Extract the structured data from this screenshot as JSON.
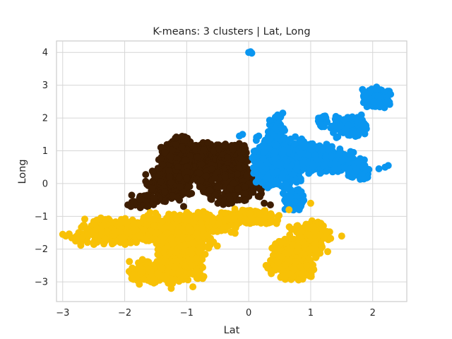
{
  "chart_data": {
    "type": "scatter",
    "title": "K-means: 3 clusters | Lat, Long",
    "xlabel": "Lat",
    "ylabel": "Long",
    "xlim": [
      -3.1,
      2.55
    ],
    "ylim": [
      -3.6,
      4.35
    ],
    "x_ticks": [
      -3,
      -2,
      -1,
      0,
      1,
      2
    ],
    "y_ticks": [
      -3,
      -2,
      -1,
      0,
      1,
      2,
      3,
      4
    ],
    "x_tick_labels": [
      "−3",
      "−2",
      "−1",
      "0",
      "1",
      "2"
    ],
    "y_tick_labels": [
      "−3",
      "−2",
      "−1",
      "0",
      "1",
      "2",
      "3",
      "4"
    ],
    "grid": true,
    "legend": "none",
    "series": [
      {
        "color": "#3d1d02",
        "regions": [
          {
            "x": [
              -1.5,
              -0.3
            ],
            "y": [
              0.1,
              1.3
            ],
            "n": 520
          },
          {
            "x": [
              -1.7,
              -0.9
            ],
            "y": [
              -0.6,
              0.6
            ],
            "n": 250
          },
          {
            "x": [
              -0.9,
              0.3
            ],
            "y": [
              -0.7,
              0.9
            ],
            "n": 380
          },
          {
            "x": [
              -1.25,
              -0.95
            ],
            "y": [
              1.0,
              1.45
            ],
            "n": 60
          },
          {
            "x": [
              -0.5,
              0.0
            ],
            "y": [
              0.6,
              1.25
            ],
            "n": 80
          },
          {
            "x": [
              -1.95,
              -1.4
            ],
            "y": [
              -0.75,
              -0.3
            ],
            "n": 50
          }
        ],
        "points": [
          [
            -1.95,
            -0.65
          ],
          [
            -1.9,
            -0.7
          ],
          [
            -1.05,
            -0.7
          ],
          [
            0.35,
            -0.65
          ],
          [
            0.25,
            -0.6
          ],
          [
            -0.15,
            -0.5
          ]
        ]
      },
      {
        "color": "#0a96f0",
        "regions": [
          {
            "x": [
              0.05,
              0.9
            ],
            "y": [
              -0.2,
              1.5
            ],
            "n": 550
          },
          {
            "x": [
              0.3,
              0.6
            ],
            "y": [
              0.9,
              2.1
            ],
            "n": 130
          },
          {
            "x": [
              0.5,
              1.5
            ],
            "y": [
              0.3,
              1.3
            ],
            "n": 330
          },
          {
            "x": [
              0.8,
              1.8
            ],
            "y": [
              0.3,
              1.1
            ],
            "n": 200
          },
          {
            "x": [
              1.3,
              1.95
            ],
            "y": [
              1.35,
              2.1
            ],
            "n": 160
          },
          {
            "x": [
              1.8,
              2.3
            ],
            "y": [
              2.3,
              2.95
            ],
            "n": 150
          },
          {
            "x": [
              1.55,
              1.95
            ],
            "y": [
              0.1,
              0.8
            ],
            "n": 100
          },
          {
            "x": [
              0.55,
              0.92
            ],
            "y": [
              -0.9,
              -0.1
            ],
            "n": 80
          },
          {
            "x": [
              1.1,
              1.3
            ],
            "y": [
              1.7,
              2.1
            ],
            "n": 30
          }
        ],
        "points": [
          [
            0.0,
            4.0
          ],
          [
            0.03,
            4.02
          ],
          [
            0.05,
            3.98
          ],
          [
            -0.15,
            1.45
          ],
          [
            -0.1,
            1.5
          ],
          [
            0.55,
            2.15
          ],
          [
            2.25,
            0.55
          ],
          [
            2.2,
            0.5
          ],
          [
            2.1,
            0.45
          ]
        ]
      },
      {
        "color": "#f8c106",
        "regions": [
          {
            "x": [
              -2.75,
              -1.3
            ],
            "y": [
              -1.9,
              -1.0
            ],
            "n": 360
          },
          {
            "x": [
              -1.75,
              -0.1
            ],
            "y": [
              -1.6,
              -0.85
            ],
            "n": 330
          },
          {
            "x": [
              -1.5,
              -0.7
            ],
            "y": [
              -3.0,
              -1.2
            ],
            "n": 460
          },
          {
            "x": [
              -2.0,
              -1.0
            ],
            "y": [
              -3.1,
              -2.3
            ],
            "n": 200
          },
          {
            "x": [
              -1.6,
              -0.5
            ],
            "y": [
              -2.2,
              -1.3
            ],
            "n": 160
          },
          {
            "x": [
              0.3,
              1.1
            ],
            "y": [
              -3.0,
              -1.6
            ],
            "n": 300
          },
          {
            "x": [
              0.6,
              1.35
            ],
            "y": [
              -2.2,
              -1.05
            ],
            "n": 180
          },
          {
            "x": [
              -0.6,
              0.6
            ],
            "y": [
              -1.3,
              -0.75
            ],
            "n": 150
          },
          {
            "x": [
              -2.95,
              -2.5
            ],
            "y": [
              -1.9,
              -1.45
            ],
            "n": 40
          }
        ],
        "points": [
          [
            -3.0,
            -1.55
          ],
          [
            -2.95,
            -1.6
          ],
          [
            -1.25,
            -3.2
          ],
          [
            -0.9,
            -3.15
          ],
          [
            0.28,
            -2.5
          ],
          [
            1.5,
            -1.6
          ],
          [
            0.65,
            -0.8
          ],
          [
            1.0,
            -0.6
          ]
        ]
      }
    ]
  }
}
